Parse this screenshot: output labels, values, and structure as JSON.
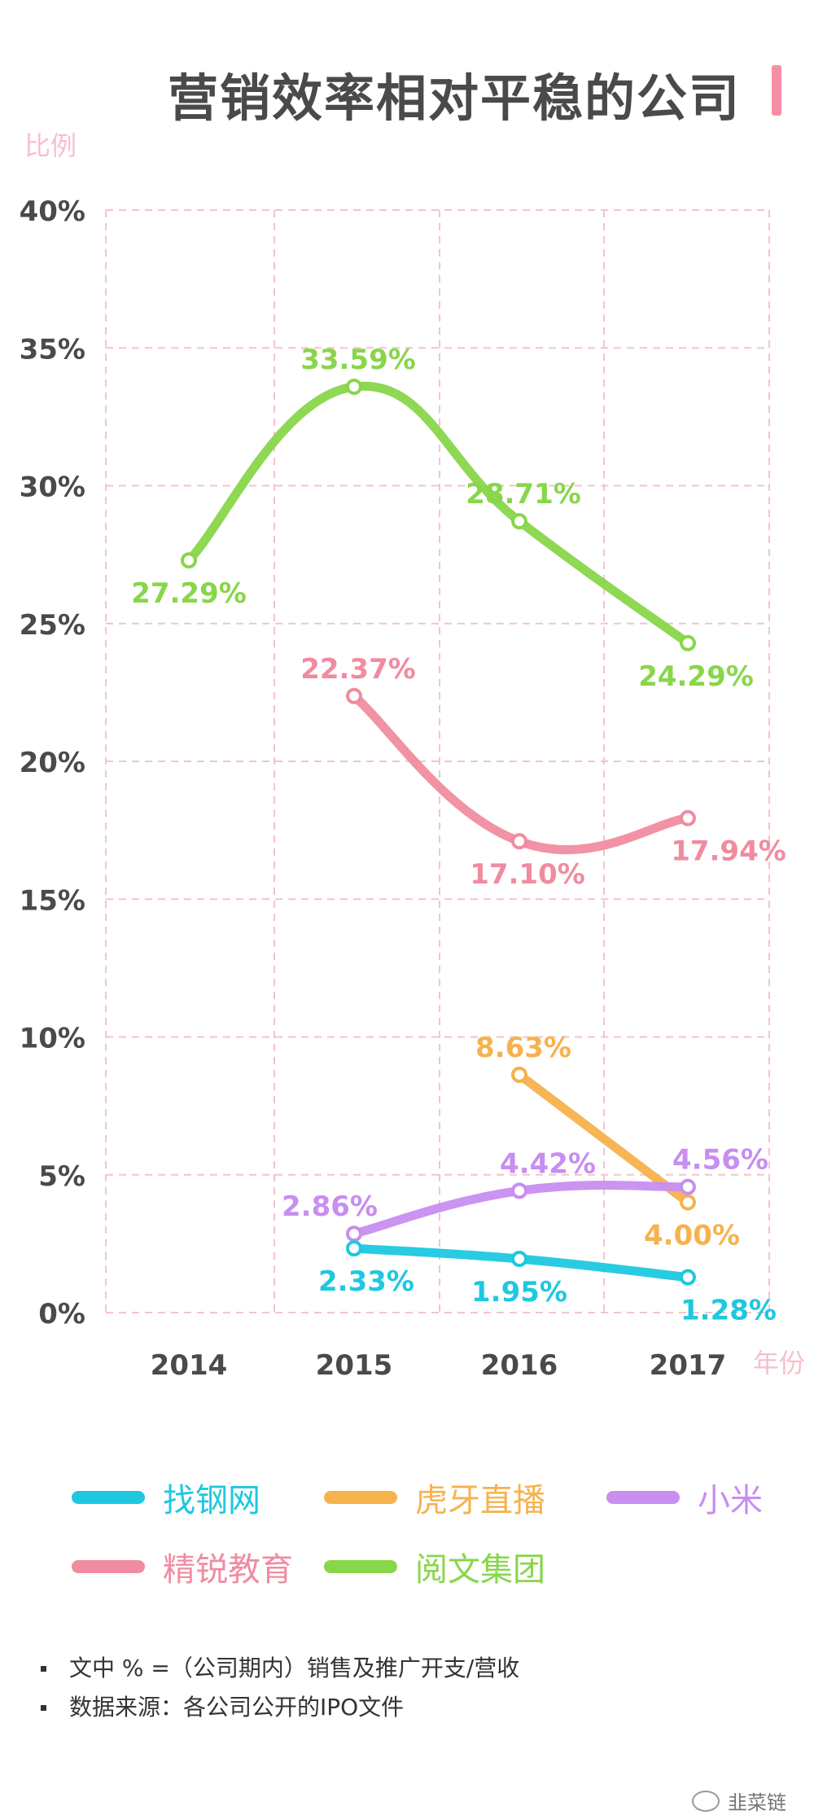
{
  "title": "营销效率相对平稳的公司",
  "colors": {
    "grid": "#f3c4cc",
    "axis_tick": "#4a4a4a",
    "axis_name": "#f7c0cc"
  },
  "chart_data": {
    "type": "line",
    "x": [
      "2014",
      "2015",
      "2016",
      "2017"
    ],
    "xlabel": "年份",
    "ylabel": "比例",
    "ylim": [
      0,
      40
    ],
    "yticks": [
      "0%",
      "5%",
      "10%",
      "15%",
      "20%",
      "25%",
      "30%",
      "35%",
      "40%"
    ],
    "grid": true,
    "legend_position": "bottom",
    "series": [
      {
        "name": "阅文集团",
        "color": "#88d64a",
        "values": [
          27.29,
          33.59,
          28.71,
          24.29
        ],
        "labels": [
          "27.29%",
          "33.59%",
          "28.71%",
          "24.29%"
        ]
      },
      {
        "name": "精锐教育",
        "color": "#f08ca0",
        "values": [
          null,
          22.37,
          17.1,
          17.94
        ],
        "labels": [
          "",
          "22.37%",
          "17.10%",
          "17.94%"
        ]
      },
      {
        "name": "虎牙直播",
        "color": "#f6b24d",
        "values": [
          null,
          null,
          8.63,
          4.0
        ],
        "labels": [
          "",
          "",
          "8.63%",
          "4.00%"
        ]
      },
      {
        "name": "小米",
        "color": "#c88ef0",
        "values": [
          null,
          2.86,
          4.42,
          4.56
        ],
        "labels": [
          "",
          "2.86%",
          "4.42%",
          "4.56%"
        ]
      },
      {
        "name": "找钢网",
        "color": "#1ec8e0",
        "values": [
          null,
          2.33,
          1.95,
          1.28
        ],
        "labels": [
          "",
          "2.33%",
          "1.95%",
          "1.28%"
        ]
      }
    ]
  },
  "legend": [
    {
      "label": "找钢网",
      "color": "#1ec8e0"
    },
    {
      "label": "虎牙直播",
      "color": "#f6b24d"
    },
    {
      "label": "小米",
      "color": "#c88ef0"
    },
    {
      "label": "精锐教育",
      "color": "#f08ca0"
    },
    {
      "label": "阅文集团",
      "color": "#88d64a"
    }
  ],
  "notes": [
    "文中 % =（公司期内）销售及推广开支/营收",
    "数据来源：各公司公开的IPO文件"
  ],
  "watermark": "韭菜链"
}
